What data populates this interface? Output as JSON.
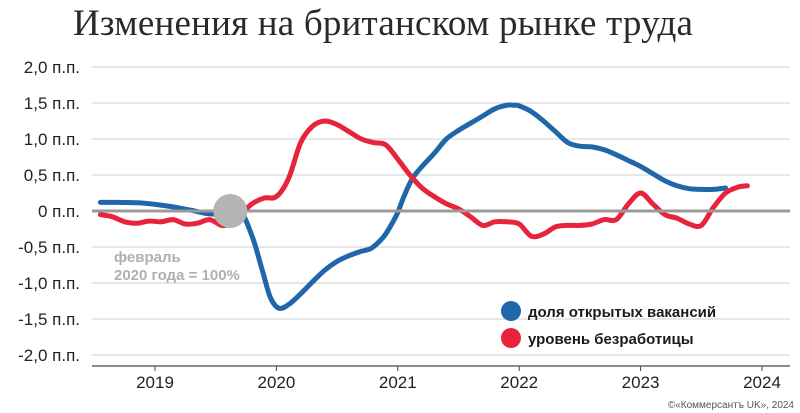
{
  "chart_data": {
    "type": "line",
    "title": "Изменения на британском рынке труда",
    "y_tick_labels": [
      "2,0 п.п.",
      "1,5 п.п.",
      "1,0 п.п.",
      "0,5 п.п.",
      "0 п.п.",
      "-0,5 п.п.",
      "-1,0 п.п.",
      "-1,5 п.п.",
      "-2,0 п.п."
    ],
    "y_tick_values": [
      2.0,
      1.5,
      1.0,
      0.5,
      0,
      -0.5,
      -1.0,
      -1.5,
      -2.0
    ],
    "ylim": [
      -2.0,
      2.0
    ],
    "x_tick_labels": [
      "2019",
      "2020",
      "2021",
      "2022",
      "2023",
      "2024"
    ],
    "x_tick_values": [
      2019,
      2020,
      2021,
      2022,
      2023,
      2024
    ],
    "xlim": [
      2018.5,
      2024.3
    ],
    "grid": true,
    "legend_position": "bottom-right",
    "reference_point": {
      "x": 2019.62,
      "y": 0,
      "label_line1": "февраль",
      "label_line2": "2020 года = 100%",
      "color": "#b4b4b4"
    },
    "series": [
      {
        "name": "доля открытых вакансий",
        "color": "#1f67a8",
        "x": [
          2018.55,
          2018.7,
          2018.9,
          2019.1,
          2019.3,
          2019.45,
          2019.6,
          2019.7,
          2019.8,
          2019.88,
          2019.95,
          2020.02,
          2020.1,
          2020.2,
          2020.3,
          2020.4,
          2020.5,
          2020.6,
          2020.7,
          2020.78,
          2020.85,
          2020.9,
          2020.95,
          2021.0,
          2021.05,
          2021.12,
          2021.2,
          2021.3,
          2021.4,
          2021.5,
          2021.6,
          2021.7,
          2021.8,
          2021.9,
          2021.95,
          2022.0,
          2022.1,
          2022.2,
          2022.3,
          2022.4,
          2022.5,
          2022.6,
          2022.7,
          2022.8,
          2022.9,
          2023.0,
          2023.1,
          2023.2,
          2023.3,
          2023.4,
          2023.5,
          2023.6,
          2023.7
        ],
        "y": [
          0.12,
          0.12,
          0.11,
          0.07,
          0.01,
          -0.04,
          -0.03,
          0.01,
          -0.35,
          -0.8,
          -1.2,
          -1.35,
          -1.3,
          -1.15,
          -0.98,
          -0.82,
          -0.7,
          -0.62,
          -0.56,
          -0.52,
          -0.42,
          -0.32,
          -0.18,
          -0.02,
          0.2,
          0.45,
          0.62,
          0.8,
          1.0,
          1.12,
          1.22,
          1.32,
          1.42,
          1.47,
          1.47,
          1.46,
          1.38,
          1.25,
          1.1,
          0.95,
          0.9,
          0.89,
          0.85,
          0.78,
          0.7,
          0.62,
          0.52,
          0.42,
          0.35,
          0.31,
          0.3,
          0.3,
          0.32
        ]
      },
      {
        "name": "уровень безработицы",
        "color": "#e8233c",
        "x": [
          2018.55,
          2018.65,
          2018.75,
          2018.85,
          2018.95,
          2019.05,
          2019.15,
          2019.25,
          2019.35,
          2019.45,
          2019.55,
          2019.62,
          2019.7,
          2019.8,
          2019.9,
          2020.0,
          2020.1,
          2020.2,
          2020.3,
          2020.4,
          2020.5,
          2020.6,
          2020.7,
          2020.8,
          2020.9,
          2021.0,
          2021.1,
          2021.2,
          2021.3,
          2021.4,
          2021.5,
          2021.6,
          2021.7,
          2021.8,
          2021.9,
          2022.0,
          2022.1,
          2022.2,
          2022.3,
          2022.4,
          2022.5,
          2022.6,
          2022.7,
          2022.8,
          2022.9,
          2023.0,
          2023.1,
          2023.2,
          2023.3,
          2023.4,
          2023.5,
          2023.6,
          2023.7,
          2023.8,
          2023.88
        ],
        "y": [
          -0.05,
          -0.08,
          -0.15,
          -0.17,
          -0.14,
          -0.15,
          -0.12,
          -0.18,
          -0.17,
          -0.12,
          -0.2,
          -0.17,
          -0.05,
          0.1,
          0.18,
          0.2,
          0.45,
          0.95,
          1.18,
          1.25,
          1.2,
          1.1,
          1.0,
          0.95,
          0.92,
          0.72,
          0.5,
          0.32,
          0.2,
          0.1,
          0.03,
          -0.08,
          -0.2,
          -0.15,
          -0.15,
          -0.18,
          -0.35,
          -0.32,
          -0.22,
          -0.2,
          -0.2,
          -0.18,
          -0.12,
          -0.12,
          0.1,
          0.25,
          0.1,
          -0.05,
          -0.1,
          -0.18,
          -0.2,
          0.05,
          0.25,
          0.33,
          0.35
        ]
      }
    ]
  },
  "credit": "©«Коммерсантъ UK», 2024"
}
